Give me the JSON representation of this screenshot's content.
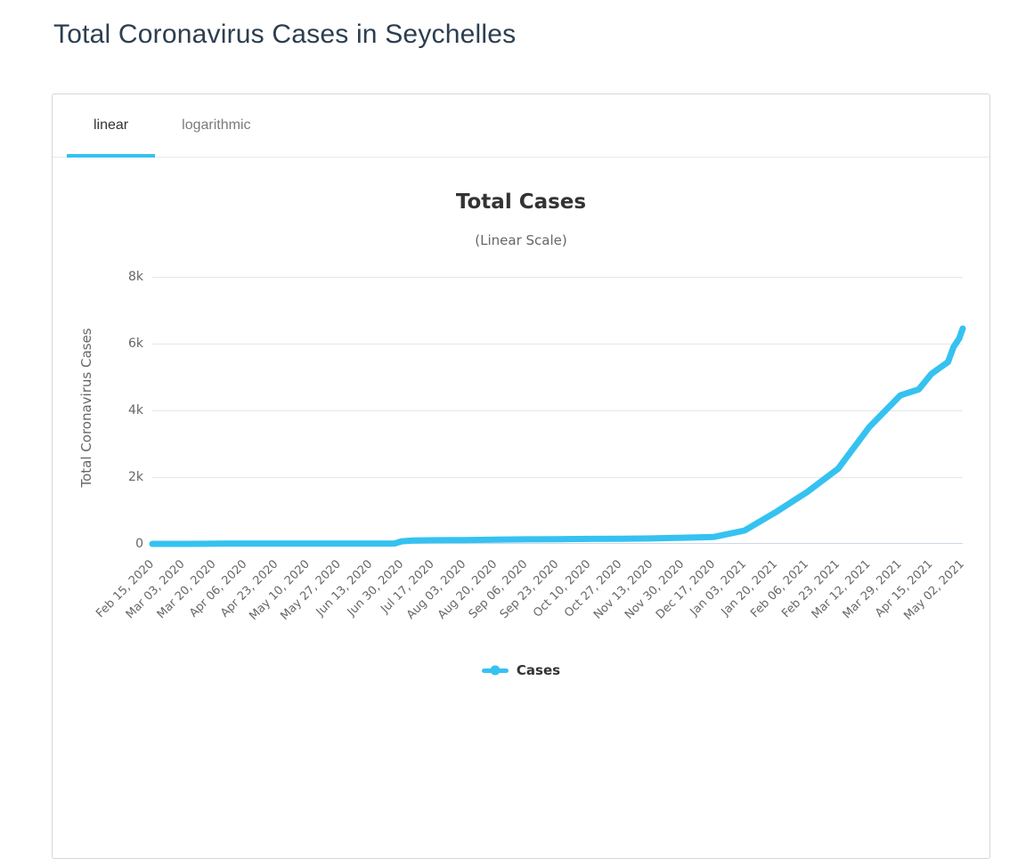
{
  "page": {
    "title": "Total Coronavirus Cases in Seychelles"
  },
  "tabs": [
    {
      "label": "linear",
      "active": true
    },
    {
      "label": "logarithmic",
      "active": false
    }
  ],
  "legend": {
    "label": "Cases"
  },
  "colors": {
    "accent": "#35C2F0",
    "grid": "#E6E6E6",
    "axis_line": "#CCD6EB",
    "text_dark": "#333333",
    "text_muted": "#666666"
  },
  "chart_data": {
    "type": "line",
    "title": "Total Cases",
    "subtitle": "(Linear Scale)",
    "xlabel": "",
    "ylabel": "Total Coronavirus Cases",
    "ylim": [
      0,
      8000
    ],
    "grid": true,
    "legend_position": "bottom",
    "y_ticks": [
      {
        "label": "0",
        "value": 0
      },
      {
        "label": "2k",
        "value": 2000
      },
      {
        "label": "4k",
        "value": 4000
      },
      {
        "label": "6k",
        "value": 6000
      },
      {
        "label": "8k",
        "value": 8000
      }
    ],
    "x_tick_labels": [
      "Feb 15, 2020",
      "Mar 03, 2020",
      "Mar 20, 2020",
      "Apr 06, 2020",
      "Apr 23, 2020",
      "May 10, 2020",
      "May 27, 2020",
      "Jun 13, 2020",
      "Jun 30, 2020",
      "Jul 17, 2020",
      "Aug 03, 2020",
      "Aug 20, 2020",
      "Sep 06, 2020",
      "Sep 23, 2020",
      "Oct 10, 2020",
      "Oct 27, 2020",
      "Nov 13, 2020",
      "Nov 30, 2020",
      "Dec 17, 2020",
      "Jan 03, 2021",
      "Jan 20, 2021",
      "Feb 06, 2021",
      "Feb 23, 2021",
      "Mar 12, 2021",
      "Mar 29, 2021",
      "Apr 15, 2021",
      "May 02, 2021"
    ],
    "series": [
      {
        "name": "Cases",
        "color": "#35C2F0",
        "points": [
          {
            "date": "Feb 15, 2020",
            "value": 0
          },
          {
            "date": "Mar 03, 2020",
            "value": 0
          },
          {
            "date": "Mar 14, 2020",
            "value": 2
          },
          {
            "date": "Mar 20, 2020",
            "value": 7
          },
          {
            "date": "Apr 06, 2020",
            "value": 10
          },
          {
            "date": "Apr 23, 2020",
            "value": 11
          },
          {
            "date": "May 10, 2020",
            "value": 11
          },
          {
            "date": "May 27, 2020",
            "value": 11
          },
          {
            "date": "Jun 13, 2020",
            "value": 11
          },
          {
            "date": "Jun 26, 2020",
            "value": 11
          },
          {
            "date": "Jun 30, 2020",
            "value": 77
          },
          {
            "date": "Jul 06, 2020",
            "value": 100
          },
          {
            "date": "Jul 17, 2020",
            "value": 108
          },
          {
            "date": "Aug 03, 2020",
            "value": 114
          },
          {
            "date": "Aug 20, 2020",
            "value": 127
          },
          {
            "date": "Sep 06, 2020",
            "value": 136
          },
          {
            "date": "Sep 23, 2020",
            "value": 141
          },
          {
            "date": "Oct 10, 2020",
            "value": 148
          },
          {
            "date": "Oct 27, 2020",
            "value": 153
          },
          {
            "date": "Nov 13, 2020",
            "value": 163
          },
          {
            "date": "Nov 30, 2020",
            "value": 184
          },
          {
            "date": "Dec 17, 2020",
            "value": 205
          },
          {
            "date": "Jan 03, 2021",
            "value": 400
          },
          {
            "date": "Jan 20, 2021",
            "value": 950
          },
          {
            "date": "Feb 06, 2021",
            "value": 1550
          },
          {
            "date": "Feb 23, 2021",
            "value": 2250
          },
          {
            "date": "Mar 12, 2021",
            "value": 3500
          },
          {
            "date": "Mar 29, 2021",
            "value": 4450
          },
          {
            "date": "Apr 08, 2021",
            "value": 4630
          },
          {
            "date": "Apr 15, 2021",
            "value": 5100
          },
          {
            "date": "Apr 24, 2021",
            "value": 5450
          },
          {
            "date": "Apr 27, 2021",
            "value": 5900
          },
          {
            "date": "Apr 30, 2021",
            "value": 6150
          },
          {
            "date": "May 02, 2021",
            "value": 6450
          }
        ]
      }
    ]
  }
}
